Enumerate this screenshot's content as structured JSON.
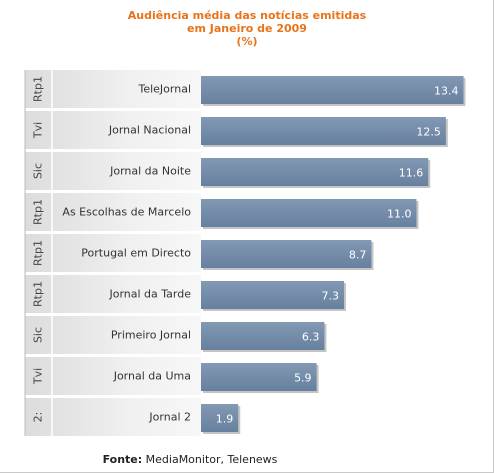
{
  "chart_data": {
    "type": "bar",
    "orientation": "horizontal",
    "title": [
      "Audiência média das notícias emitidas",
      "em Janeiro de 2009",
      "(%)"
    ],
    "groups": [
      "Rtp1",
      "Tvi",
      "Sic",
      "Rtp1",
      "Rtp1",
      "Rtp1",
      "Sic",
      "Tvi",
      "2:"
    ],
    "categories": [
      "TeleJornal",
      "Jornal Nacional",
      "Jornal da Noite",
      "As Escolhas de Marcelo",
      "Portugal em Directo",
      "Jornal da Tarde",
      "Primeiro Jornal",
      "Jornal da Uma",
      "Jornal 2"
    ],
    "values": [
      13.4,
      12.5,
      11.6,
      11.0,
      8.7,
      7.3,
      6.3,
      5.9,
      1.9
    ],
    "value_labels": [
      "13.4",
      "12.5",
      "11.6",
      "11.0",
      "8.7",
      "7.3",
      "6.3",
      "5.9",
      "1.9"
    ],
    "xlim": [
      0,
      14.6
    ],
    "bar_color": "#7088a6",
    "grid": false
  },
  "source": {
    "label": "Fonte:",
    "text": " MediaMonitor, Telenews"
  }
}
